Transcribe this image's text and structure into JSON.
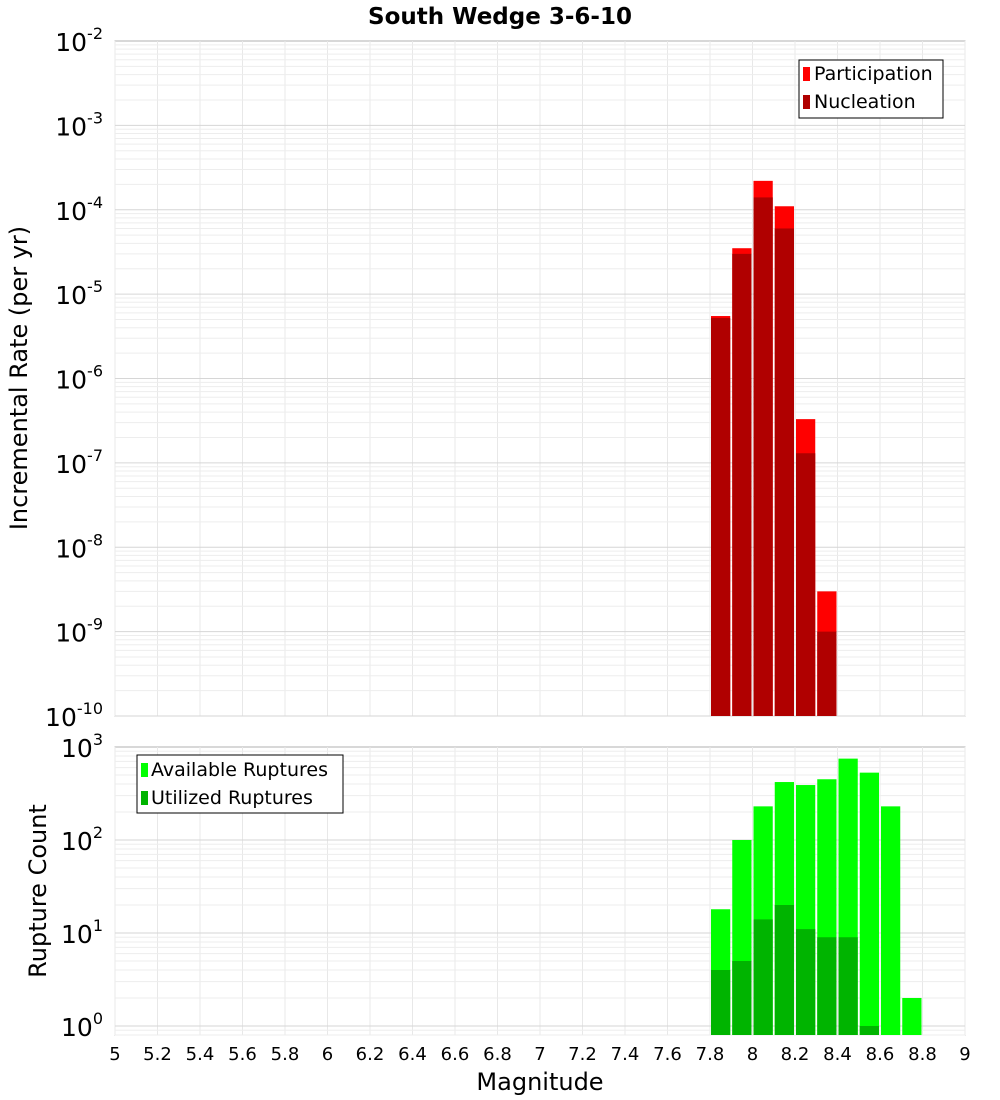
{
  "chart_data": [
    {
      "type": "bar",
      "title": "South Wedge 3-6-10",
      "ylabel": "Incremental Rate (per yr)",
      "yscale": "log",
      "ylim": [
        1e-10,
        0.01
      ],
      "xlim": [
        5,
        9
      ],
      "bin_width": 0.1,
      "y_ticks": [
        {
          "base": "10",
          "exp": "-10",
          "value": 1e-10
        },
        {
          "base": "10",
          "exp": "-9",
          "value": 1e-09
        },
        {
          "base": "10",
          "exp": "-8",
          "value": 1e-08
        },
        {
          "base": "10",
          "exp": "-7",
          "value": 1e-07
        },
        {
          "base": "10",
          "exp": "-6",
          "value": 1e-06
        },
        {
          "base": "10",
          "exp": "-5",
          "value": 1e-05
        },
        {
          "base": "10",
          "exp": "-4",
          "value": 0.0001
        },
        {
          "base": "10",
          "exp": "-3",
          "value": 0.001
        },
        {
          "base": "10",
          "exp": "-2",
          "value": 0.01
        }
      ],
      "legend": {
        "position": "top-right",
        "entries": [
          "Participation",
          "Nucleation"
        ]
      },
      "grid": true,
      "series": [
        {
          "name": "Participation",
          "color": "#ff0000",
          "x": [
            7.85,
            7.95,
            8.05,
            8.15,
            8.25,
            8.35
          ],
          "values": [
            5.5e-06,
            3.5e-05,
            0.00022,
            0.00011,
            3.3e-07,
            3e-09
          ]
        },
        {
          "name": "Nucleation",
          "color": "#b00000",
          "x": [
            7.85,
            7.95,
            8.05,
            8.15,
            8.25,
            8.35
          ],
          "values": [
            5.2e-06,
            3e-05,
            0.00014,
            6e-05,
            1.3e-07,
            1e-09
          ]
        }
      ]
    },
    {
      "type": "bar",
      "ylabel": "Rupture Count",
      "xlabel": "Magnitude",
      "yscale": "log",
      "ylim": [
        0.8,
        1000
      ],
      "xlim": [
        5,
        9
      ],
      "bin_width": 0.1,
      "x_ticks": [
        "5",
        "5.2",
        "5.4",
        "5.6",
        "5.8",
        "6",
        "6.2",
        "6.4",
        "6.6",
        "6.8",
        "7",
        "7.2",
        "7.4",
        "7.6",
        "7.8",
        "8",
        "8.2",
        "8.4",
        "8.6",
        "8.8",
        "9"
      ],
      "y_ticks": [
        {
          "base": "10",
          "exp": "0",
          "value": 1
        },
        {
          "base": "10",
          "exp": "1",
          "value": 10
        },
        {
          "base": "10",
          "exp": "2",
          "value": 100
        },
        {
          "base": "10",
          "exp": "3",
          "value": 1000
        }
      ],
      "legend": {
        "position": "top-left",
        "entries": [
          "Available Ruptures",
          "Utilized Ruptures"
        ]
      },
      "grid": true,
      "series": [
        {
          "name": "Available Ruptures",
          "color": "#00ff00",
          "x": [
            7.85,
            7.95,
            8.05,
            8.15,
            8.25,
            8.35,
            8.45,
            8.55,
            8.65,
            8.75
          ],
          "values": [
            18,
            100,
            230,
            420,
            390,
            450,
            750,
            530,
            230,
            2
          ]
        },
        {
          "name": "Utilized Ruptures",
          "color": "#00b400",
          "x": [
            7.85,
            7.95,
            8.05,
            8.15,
            8.25,
            8.35,
            8.45,
            8.55
          ],
          "values": [
            4,
            5,
            14,
            20,
            11,
            9,
            9,
            1
          ]
        }
      ]
    }
  ]
}
